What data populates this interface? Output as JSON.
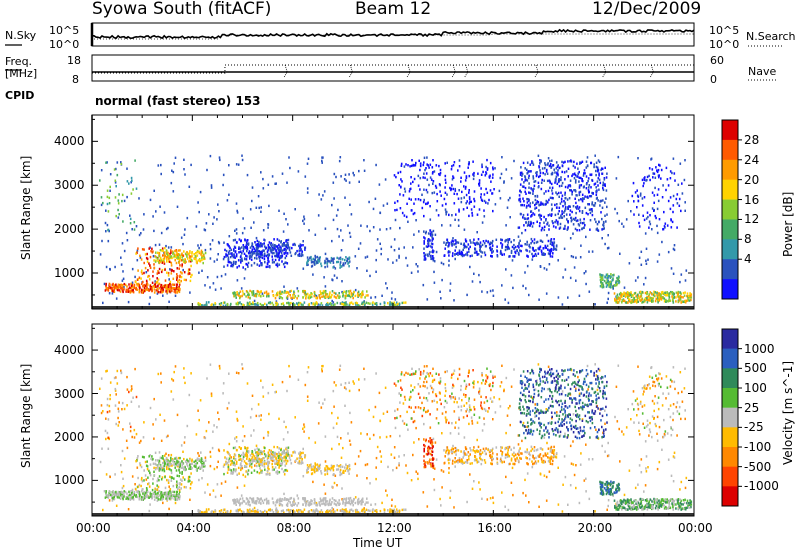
{
  "header": {
    "radar": "Syowa South (fitACF)",
    "beam": "Beam 12",
    "date": "12/Dec/2009"
  },
  "summary_panels": {
    "nsky_label": "N.Sky",
    "nsearch_label": "N.Search",
    "nsky_ticks": [
      "10^5",
      "10^0"
    ],
    "nsearch_ticks": [
      "10^5",
      "10^0"
    ],
    "freq_label_1": "Freq.",
    "freq_label_2": "[MHz]",
    "freq_ticks": [
      "18",
      "8"
    ],
    "nave_label": "Nave",
    "nave_ticks": [
      "60",
      "0"
    ],
    "cpid_label": "CPID",
    "cpid_value": "normal (fast stereo) 153"
  },
  "chart_data": [
    {
      "type": "heatmap",
      "name": "power",
      "ylabel": "Slant Range [km]",
      "yticks": [
        1000,
        2000,
        3000,
        4000
      ],
      "ylim": [
        180,
        4600
      ],
      "xlim": [
        0,
        24
      ],
      "colorbar": {
        "label": "Power [dB]",
        "ticks": [
          "28",
          "24",
          "20",
          "16",
          "12",
          "8",
          "4"
        ],
        "colors": [
          "#dd0000",
          "#ff5a00",
          "#ff9b00",
          "#ffd300",
          "#88cc33",
          "#44aa66",
          "#3399aa",
          "#2a52be",
          "#1010ff"
        ]
      }
    },
    {
      "type": "heatmap",
      "name": "velocity",
      "ylabel": "Slant Range [km]",
      "yticks": [
        1000,
        2000,
        3000,
        4000
      ],
      "ylim": [
        180,
        4600
      ],
      "xlim": [
        0,
        24
      ],
      "xticks": [
        "00:00",
        "04:00",
        "08:00",
        "12:00",
        "16:00",
        "20:00",
        "00:00"
      ],
      "xlabel": "Time UT",
      "colorbar": {
        "label": "Velocity [m s^-1]",
        "ticks": [
          "1000",
          "500",
          "100",
          "25",
          "-25",
          "-100",
          "-500",
          "-1000"
        ],
        "colors": [
          "#2a2aa0",
          "#2a5fbf",
          "#2f8a5a",
          "#55bb33",
          "#bbbbbb",
          "#ffbb00",
          "#ff8800",
          "#ff4400",
          "#dd0000"
        ]
      }
    }
  ]
}
